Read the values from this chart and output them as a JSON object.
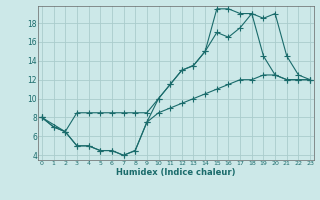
{
  "xlabel": "Humidex (Indice chaleur)",
  "bg_color": "#cce8e8",
  "grid_color": "#aacccc",
  "line_color": "#1a6b6b",
  "x_ticks": [
    0,
    1,
    2,
    3,
    4,
    5,
    6,
    7,
    8,
    9,
    10,
    11,
    12,
    13,
    14,
    15,
    16,
    17,
    18,
    19,
    20,
    21,
    22,
    23
  ],
  "y_ticks": [
    4,
    6,
    8,
    10,
    12,
    14,
    16,
    18
  ],
  "xlim": [
    -0.3,
    23.3
  ],
  "ylim": [
    3.5,
    19.8
  ],
  "line1_x": [
    0,
    1,
    2,
    3,
    4,
    5,
    6,
    7,
    8,
    9,
    10,
    11,
    12,
    13,
    14,
    15,
    16,
    17,
    18,
    19,
    20,
    21,
    22,
    23
  ],
  "line1_y": [
    8.0,
    7.0,
    6.5,
    5.0,
    5.0,
    4.5,
    4.5,
    4.0,
    4.5,
    7.5,
    8.5,
    9.0,
    9.5,
    10.0,
    10.5,
    11.0,
    11.5,
    12.0,
    12.0,
    12.5,
    12.5,
    12.0,
    12.0,
    12.0
  ],
  "line2_x": [
    0,
    1,
    2,
    3,
    4,
    5,
    6,
    7,
    8,
    9,
    10,
    11,
    12,
    13,
    14,
    15,
    16,
    17,
    18,
    19,
    20,
    21,
    22,
    23
  ],
  "line2_y": [
    8.0,
    7.0,
    6.5,
    5.0,
    5.0,
    4.5,
    4.5,
    4.0,
    4.5,
    7.5,
    10.0,
    11.5,
    13.0,
    13.5,
    15.0,
    17.0,
    16.5,
    17.5,
    19.0,
    14.5,
    12.5,
    12.0,
    12.0,
    12.0
  ],
  "line3_x": [
    0,
    2,
    3,
    4,
    5,
    6,
    7,
    8,
    9,
    10,
    11,
    12,
    13,
    14,
    15,
    16,
    17,
    18,
    19,
    20,
    21,
    22,
    23
  ],
  "line3_y": [
    8.0,
    6.5,
    8.5,
    8.5,
    8.5,
    8.5,
    8.5,
    8.5,
    8.5,
    10.0,
    11.5,
    13.0,
    13.5,
    15.0,
    19.5,
    19.5,
    19.0,
    19.0,
    18.5,
    19.0,
    14.5,
    12.5,
    12.0
  ]
}
